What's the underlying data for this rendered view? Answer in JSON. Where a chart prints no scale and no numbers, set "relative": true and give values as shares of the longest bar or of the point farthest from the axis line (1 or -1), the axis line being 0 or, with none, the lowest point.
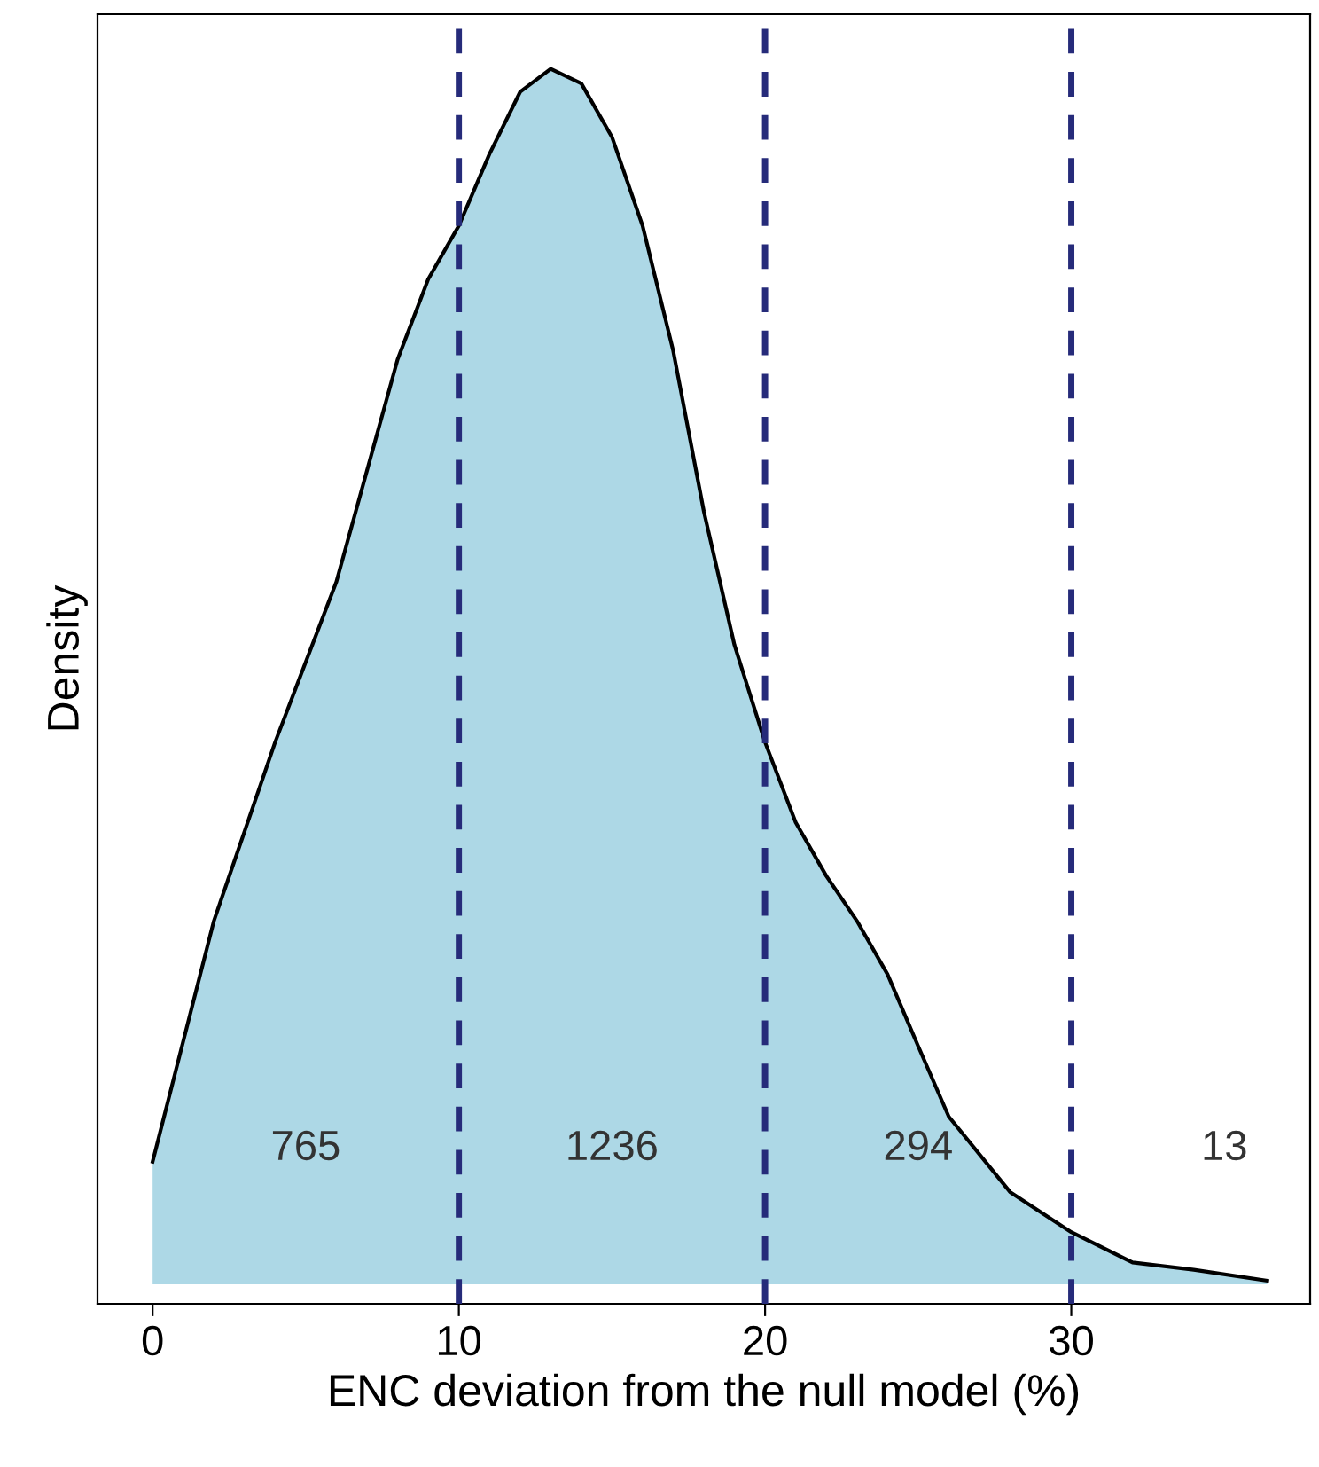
{
  "chart_data": {
    "type": "area",
    "relative": true,
    "xlabel": "ENC deviation from the null model (%)",
    "ylabel": "Density",
    "x": [
      0,
      2,
      4,
      6,
      8,
      9,
      10,
      11,
      12,
      13,
      14,
      15,
      16,
      17,
      18,
      19,
      20,
      21,
      22,
      23,
      24,
      25,
      26,
      28,
      30,
      32,
      34,
      36.4
    ],
    "series": [
      {
        "color": "#add8e6",
        "values": [
          0.101,
          0.299,
          0.446,
          0.578,
          0.761,
          0.827,
          0.871,
          0.93,
          0.981,
          1.0,
          0.988,
          0.944,
          0.871,
          0.768,
          0.636,
          0.526,
          0.446,
          0.38,
          0.336,
          0.299,
          0.255,
          0.196,
          0.138,
          0.076,
          0.043,
          0.018,
          0.012,
          0.003
        ]
      }
    ],
    "xlim": [
      -1.8,
      37.8
    ],
    "xticks": [
      0,
      10,
      20,
      30
    ],
    "ref_lines": [
      {
        "axis": "x",
        "value": 10,
        "color": "#262b7a",
        "line_style": "dashed"
      },
      {
        "axis": "x",
        "value": 20,
        "color": "#262b7a",
        "line_style": "dashed"
      },
      {
        "axis": "x",
        "value": 30,
        "color": "#262b7a",
        "line_style": "dashed"
      }
    ],
    "annotations": [
      "765",
      "1236",
      "294",
      "13"
    ]
  }
}
